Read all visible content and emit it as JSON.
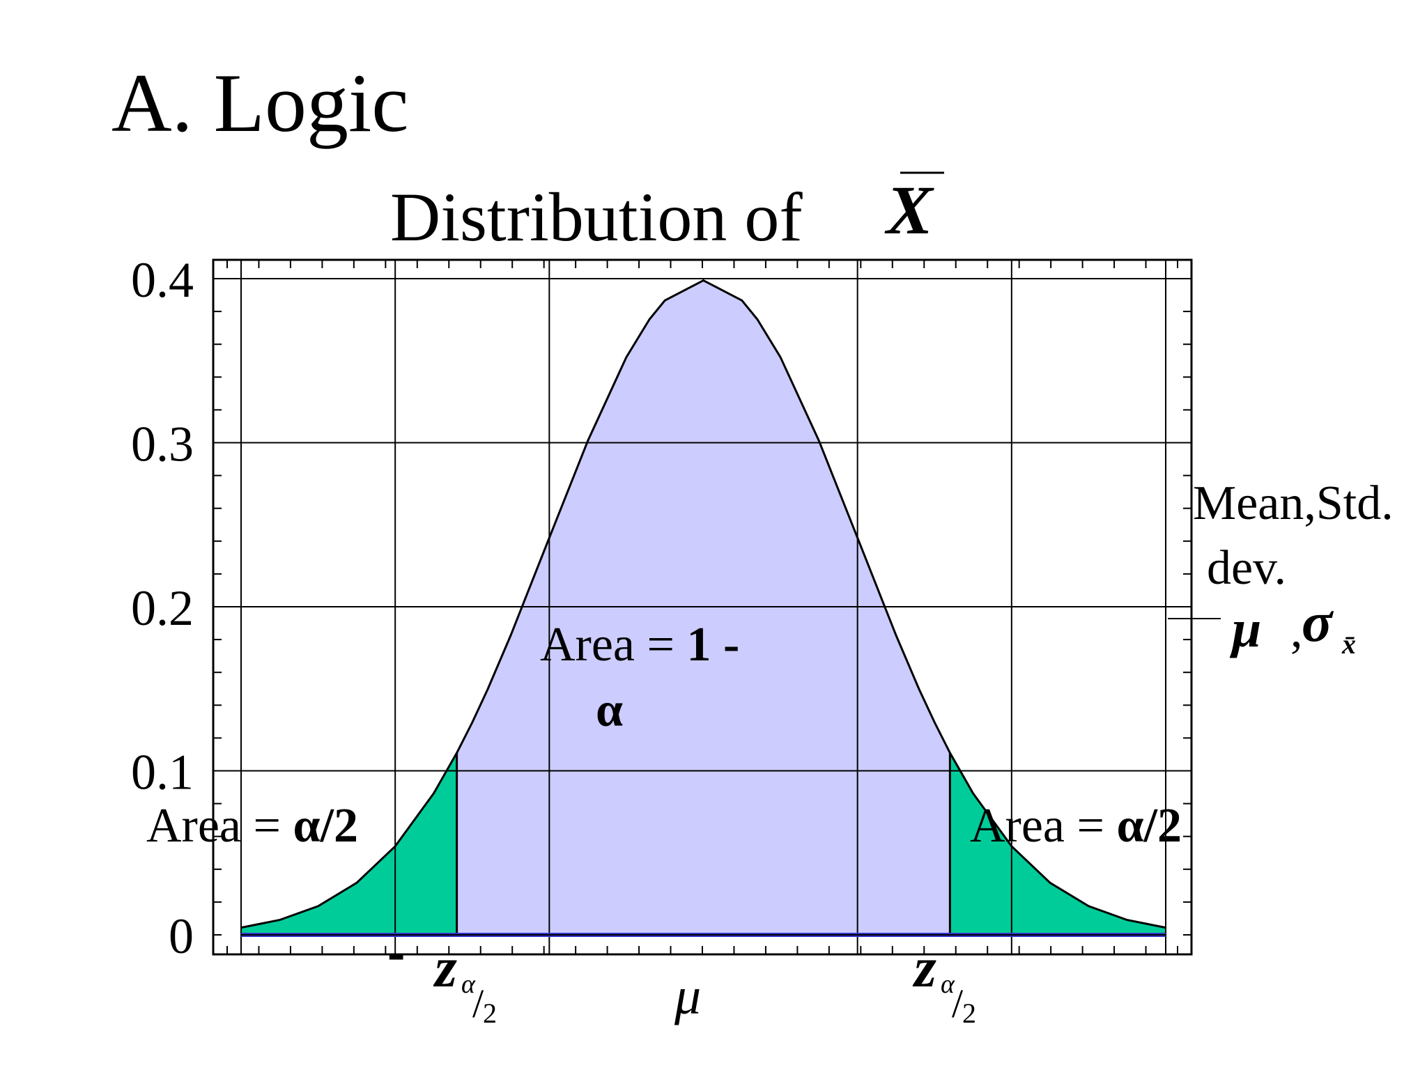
{
  "slide": {
    "title": "A. Logic"
  },
  "chart_data": {
    "type": "area",
    "title": "Distribution of",
    "title_symbol": "X",
    "xlabel": "",
    "ylabel": "",
    "x_domain": [
      -3,
      3
    ],
    "ylim": [
      0,
      0.4
    ],
    "yticks": [
      {
        "value": 0,
        "label": "0"
      },
      {
        "value": 0.1,
        "label": "0.1"
      },
      {
        "value": 0.2,
        "label": "0.2"
      },
      {
        "value": 0.3,
        "label": "0.3"
      },
      {
        "value": 0.4,
        "label": "0.4"
      }
    ],
    "x_gridlines": [
      -3,
      -2,
      -1,
      1,
      2,
      3
    ],
    "grid": true,
    "curve": {
      "x": [
        -3.0,
        -2.75,
        -2.5,
        -2.25,
        -2.0,
        -1.75,
        -1.6,
        -1.5,
        -1.4,
        -1.25,
        -1.0,
        -0.75,
        -0.5,
        -0.35,
        -0.25,
        0.0,
        0.25,
        0.35,
        0.5,
        0.75,
        1.0,
        1.25,
        1.4,
        1.5,
        1.6,
        1.75,
        2.0,
        2.25,
        2.5,
        2.75,
        3.0
      ],
      "y": [
        0.0044,
        0.0091,
        0.0175,
        0.0317,
        0.054,
        0.0863,
        0.1109,
        0.1295,
        0.1497,
        0.1826,
        0.242,
        0.3011,
        0.3521,
        0.3752,
        0.3867,
        0.3989,
        0.3867,
        0.3752,
        0.3521,
        0.3011,
        0.242,
        0.1826,
        0.1497,
        0.1295,
        0.1109,
        0.0863,
        0.054,
        0.0317,
        0.0175,
        0.0091,
        0.0044
      ]
    },
    "critical_value": 1.6,
    "regions": [
      {
        "name": "left tail",
        "from": -3.0,
        "to": -1.6,
        "color": "#00cc99"
      },
      {
        "name": "center",
        "from": -1.6,
        "to": 1.6,
        "color": "#ccccff"
      },
      {
        "name": "right tail",
        "from": 1.6,
        "to": 3.0,
        "color": "#00cc99"
      }
    ],
    "baseline_color": "#3333cc",
    "annotations": {
      "left_area_prefix": "Area = ",
      "left_area_value": "α/2",
      "center_area_prefix": "Area = ",
      "center_area_value": "1 -",
      "center_area_alpha": "α",
      "right_area_prefix": "Area = ",
      "right_area_value": "α/2",
      "legend_line1": "Mean,Std.",
      "legend_line2": "dev.",
      "legend_mu": "μ",
      "legend_comma": ",",
      "legend_sigma": "σ",
      "legend_sigma_sub": "x̄",
      "x_label_left_minus": "-",
      "x_label_left_z": "z",
      "x_label_right_z": "z",
      "z_sub_alpha": "α",
      "z_sub_slash": "/",
      "z_sub_two": "2",
      "x_label_mu": "μ"
    }
  }
}
